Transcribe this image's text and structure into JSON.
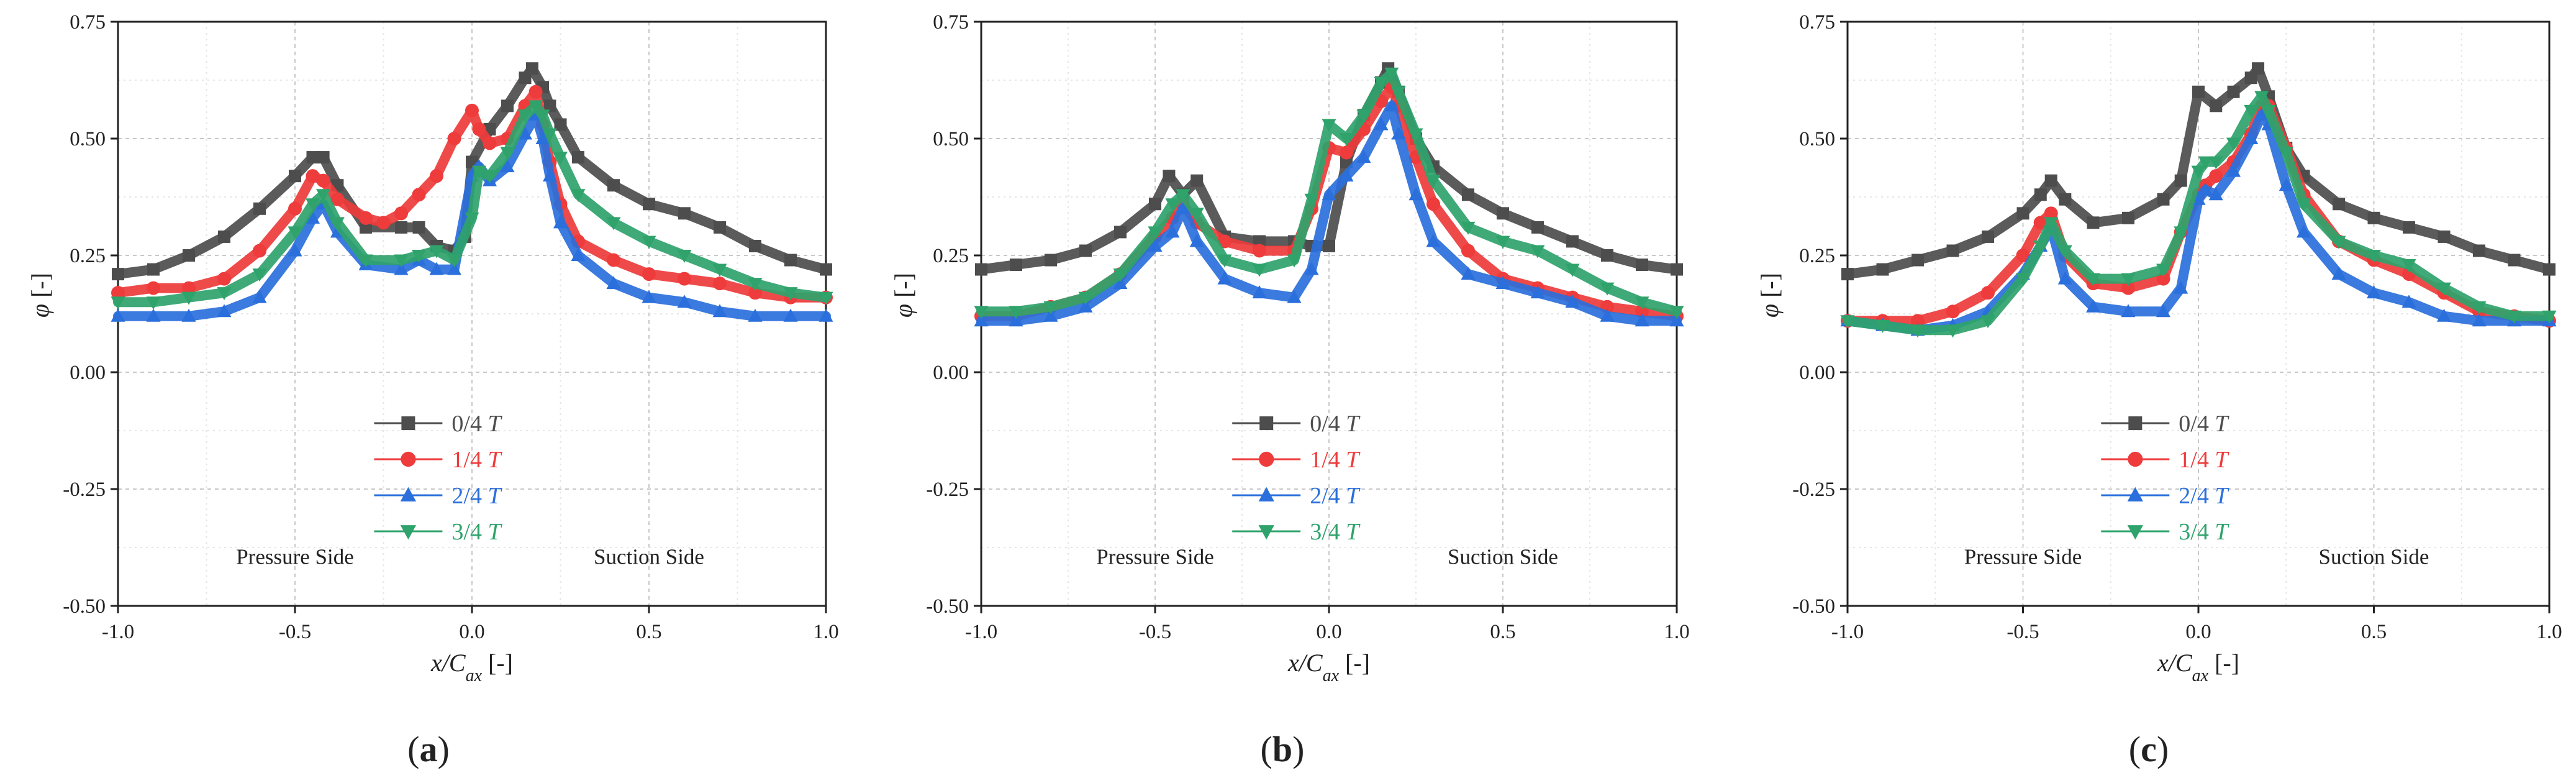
{
  "chart_data": [
    {
      "type": "scatter",
      "panel_label": "a",
      "xlabel": "x/Cax [-]",
      "ylabel": "φ [-]",
      "xlim": [
        -1.0,
        1.0
      ],
      "ylim": [
        -0.5,
        0.75
      ],
      "xticks": [
        "-1.0",
        "-0.5",
        "0.0",
        "0.5",
        "1.0"
      ],
      "yticks": [
        "-0.50",
        "-0.25",
        "0.00",
        "0.25",
        "0.50",
        "0.75"
      ],
      "grid": true,
      "legend_position": "lower-center",
      "annotations": [
        "Pressure Side",
        "Suction Side"
      ],
      "series": [
        {
          "name": "0/4 T",
          "color": "#4d4d4d",
          "marker": "square",
          "x": [
            -1.0,
            -0.9,
            -0.8,
            -0.7,
            -0.6,
            -0.5,
            -0.45,
            -0.42,
            -0.38,
            -0.3,
            -0.2,
            -0.15,
            -0.1,
            -0.05,
            -0.02,
            0.0,
            0.05,
            0.1,
            0.15,
            0.17,
            0.2,
            0.22,
            0.25,
            0.3,
            0.4,
            0.5,
            0.6,
            0.7,
            0.8,
            0.9,
            1.0
          ],
          "y": [
            0.21,
            0.22,
            0.25,
            0.29,
            0.35,
            0.42,
            0.46,
            0.46,
            0.4,
            0.31,
            0.31,
            0.31,
            0.27,
            0.26,
            0.29,
            0.45,
            0.52,
            0.57,
            0.63,
            0.65,
            0.61,
            0.57,
            0.53,
            0.46,
            0.4,
            0.36,
            0.34,
            0.31,
            0.27,
            0.24,
            0.22
          ]
        },
        {
          "name": "1/4 T",
          "color": "#ee3b3b",
          "marker": "circle",
          "x": [
            -1.0,
            -0.9,
            -0.8,
            -0.7,
            -0.6,
            -0.5,
            -0.45,
            -0.42,
            -0.38,
            -0.3,
            -0.25,
            -0.2,
            -0.15,
            -0.1,
            -0.05,
            0.0,
            0.02,
            0.05,
            0.1,
            0.15,
            0.18,
            0.2,
            0.22,
            0.25,
            0.3,
            0.4,
            0.5,
            0.6,
            0.7,
            0.8,
            0.9,
            1.0
          ],
          "y": [
            0.17,
            0.18,
            0.18,
            0.2,
            0.26,
            0.35,
            0.42,
            0.41,
            0.37,
            0.33,
            0.32,
            0.34,
            0.38,
            0.42,
            0.5,
            0.56,
            0.52,
            0.49,
            0.5,
            0.57,
            0.6,
            0.53,
            0.45,
            0.36,
            0.28,
            0.24,
            0.21,
            0.2,
            0.19,
            0.17,
            0.16,
            0.16
          ]
        },
        {
          "name": "2/4 T",
          "color": "#2a6fdb",
          "marker": "triangle-up",
          "x": [
            -1.0,
            -0.9,
            -0.8,
            -0.7,
            -0.6,
            -0.5,
            -0.45,
            -0.42,
            -0.38,
            -0.3,
            -0.2,
            -0.15,
            -0.1,
            -0.05,
            0.0,
            0.02,
            0.05,
            0.1,
            0.15,
            0.18,
            0.2,
            0.22,
            0.25,
            0.3,
            0.4,
            0.5,
            0.6,
            0.7,
            0.8,
            0.9,
            1.0
          ],
          "y": [
            0.12,
            0.12,
            0.12,
            0.13,
            0.16,
            0.26,
            0.33,
            0.36,
            0.3,
            0.23,
            0.22,
            0.24,
            0.22,
            0.22,
            0.42,
            0.44,
            0.41,
            0.44,
            0.51,
            0.55,
            0.5,
            0.42,
            0.32,
            0.25,
            0.19,
            0.16,
            0.15,
            0.13,
            0.12,
            0.12,
            0.12
          ]
        },
        {
          "name": "3/4 T",
          "color": "#2fa36b",
          "marker": "triangle-down",
          "x": [
            -1.0,
            -0.9,
            -0.8,
            -0.7,
            -0.6,
            -0.5,
            -0.45,
            -0.42,
            -0.38,
            -0.3,
            -0.2,
            -0.15,
            -0.1,
            -0.05,
            0.0,
            0.02,
            0.05,
            0.1,
            0.15,
            0.18,
            0.2,
            0.22,
            0.25,
            0.3,
            0.4,
            0.5,
            0.6,
            0.7,
            0.8,
            0.9,
            1.0
          ],
          "y": [
            0.15,
            0.15,
            0.16,
            0.17,
            0.21,
            0.3,
            0.36,
            0.38,
            0.32,
            0.24,
            0.24,
            0.25,
            0.26,
            0.24,
            0.33,
            0.43,
            0.42,
            0.47,
            0.55,
            0.57,
            0.55,
            0.51,
            0.46,
            0.38,
            0.32,
            0.28,
            0.25,
            0.22,
            0.19,
            0.17,
            0.16
          ]
        }
      ]
    },
    {
      "type": "scatter",
      "panel_label": "b",
      "xlabel": "x/Cax [-]",
      "ylabel": "φ [-]",
      "xlim": [
        -1.0,
        1.0
      ],
      "ylim": [
        -0.5,
        0.75
      ],
      "xticks": [
        "-1.0",
        "-0.5",
        "0.0",
        "0.5",
        "1.0"
      ],
      "yticks": [
        "-0.50",
        "-0.25",
        "0.00",
        "0.25",
        "0.50",
        "0.75"
      ],
      "grid": true,
      "legend_position": "lower-center",
      "annotations": [
        "Pressure Side",
        "Suction Side"
      ],
      "series": [
        {
          "name": "0/4 T",
          "color": "#4d4d4d",
          "marker": "square",
          "x": [
            -1.0,
            -0.9,
            -0.8,
            -0.7,
            -0.6,
            -0.5,
            -0.46,
            -0.42,
            -0.38,
            -0.3,
            -0.2,
            -0.1,
            -0.05,
            0.0,
            0.05,
            0.1,
            0.15,
            0.17,
            0.2,
            0.25,
            0.3,
            0.4,
            0.5,
            0.6,
            0.7,
            0.8,
            0.9,
            1.0
          ],
          "y": [
            0.22,
            0.23,
            0.24,
            0.26,
            0.3,
            0.36,
            0.42,
            0.38,
            0.41,
            0.29,
            0.28,
            0.28,
            0.27,
            0.27,
            0.45,
            0.55,
            0.62,
            0.65,
            0.6,
            0.5,
            0.44,
            0.38,
            0.34,
            0.31,
            0.28,
            0.25,
            0.23,
            0.22
          ]
        },
        {
          "name": "1/4 T",
          "color": "#ee3b3b",
          "marker": "circle",
          "x": [
            -1.0,
            -0.9,
            -0.8,
            -0.7,
            -0.6,
            -0.5,
            -0.45,
            -0.42,
            -0.38,
            -0.3,
            -0.2,
            -0.1,
            -0.05,
            0.0,
            0.05,
            0.1,
            0.15,
            0.18,
            0.2,
            0.25,
            0.3,
            0.4,
            0.5,
            0.6,
            0.7,
            0.8,
            0.9,
            1.0
          ],
          "y": [
            0.12,
            0.12,
            0.14,
            0.16,
            0.21,
            0.29,
            0.33,
            0.36,
            0.32,
            0.28,
            0.26,
            0.26,
            0.35,
            0.48,
            0.47,
            0.52,
            0.58,
            0.61,
            0.57,
            0.46,
            0.36,
            0.26,
            0.2,
            0.18,
            0.16,
            0.14,
            0.13,
            0.12
          ]
        },
        {
          "name": "2/4 T",
          "color": "#2a6fdb",
          "marker": "triangle-up",
          "x": [
            -1.0,
            -0.9,
            -0.8,
            -0.7,
            -0.6,
            -0.5,
            -0.45,
            -0.42,
            -0.38,
            -0.3,
            -0.2,
            -0.1,
            -0.05,
            0.0,
            0.05,
            0.1,
            0.15,
            0.18,
            0.2,
            0.25,
            0.3,
            0.4,
            0.5,
            0.6,
            0.7,
            0.8,
            0.9,
            1.0
          ],
          "y": [
            0.11,
            0.11,
            0.12,
            0.14,
            0.19,
            0.27,
            0.3,
            0.35,
            0.28,
            0.2,
            0.17,
            0.16,
            0.22,
            0.38,
            0.42,
            0.46,
            0.53,
            0.57,
            0.51,
            0.38,
            0.28,
            0.21,
            0.19,
            0.17,
            0.15,
            0.12,
            0.11,
            0.11
          ]
        },
        {
          "name": "3/4 T",
          "color": "#2fa36b",
          "marker": "triangle-down",
          "x": [
            -1.0,
            -0.9,
            -0.8,
            -0.7,
            -0.6,
            -0.5,
            -0.45,
            -0.42,
            -0.38,
            -0.3,
            -0.2,
            -0.1,
            -0.05,
            0.0,
            0.05,
            0.1,
            0.15,
            0.18,
            0.2,
            0.25,
            0.3,
            0.4,
            0.5,
            0.6,
            0.7,
            0.8,
            0.9,
            1.0
          ],
          "y": [
            0.13,
            0.13,
            0.14,
            0.16,
            0.21,
            0.3,
            0.36,
            0.38,
            0.34,
            0.24,
            0.22,
            0.24,
            0.37,
            0.53,
            0.5,
            0.55,
            0.62,
            0.64,
            0.6,
            0.51,
            0.41,
            0.31,
            0.28,
            0.26,
            0.22,
            0.18,
            0.15,
            0.13
          ]
        }
      ]
    },
    {
      "type": "scatter",
      "panel_label": "c",
      "xlabel": "x/Cax [-]",
      "ylabel": "φ [-]",
      "xlim": [
        -1.0,
        1.0
      ],
      "ylim": [
        -0.5,
        0.75
      ],
      "xticks": [
        "-1.0",
        "-0.5",
        "0.0",
        "0.5",
        "1.0"
      ],
      "yticks": [
        "-0.50",
        "-0.25",
        "0.00",
        "0.25",
        "0.50",
        "0.75"
      ],
      "grid": true,
      "legend_position": "lower-center",
      "annotations": [
        "Pressure Side",
        "Suction Side"
      ],
      "series": [
        {
          "name": "0/4 T",
          "color": "#4d4d4d",
          "marker": "square",
          "x": [
            -1.0,
            -0.9,
            -0.8,
            -0.7,
            -0.6,
            -0.5,
            -0.45,
            -0.42,
            -0.38,
            -0.3,
            -0.2,
            -0.1,
            -0.05,
            0.0,
            0.05,
            0.1,
            0.15,
            0.17,
            0.2,
            0.25,
            0.3,
            0.4,
            0.5,
            0.6,
            0.7,
            0.8,
            0.9,
            1.0
          ],
          "y": [
            0.21,
            0.22,
            0.24,
            0.26,
            0.29,
            0.34,
            0.38,
            0.41,
            0.37,
            0.32,
            0.33,
            0.37,
            0.41,
            0.6,
            0.57,
            0.6,
            0.63,
            0.65,
            0.59,
            0.48,
            0.42,
            0.36,
            0.33,
            0.31,
            0.29,
            0.26,
            0.24,
            0.22
          ]
        },
        {
          "name": "1/4 T",
          "color": "#ee3b3b",
          "marker": "circle",
          "x": [
            -1.0,
            -0.9,
            -0.8,
            -0.7,
            -0.6,
            -0.5,
            -0.45,
            -0.42,
            -0.38,
            -0.3,
            -0.2,
            -0.1,
            -0.05,
            0.0,
            0.02,
            0.05,
            0.1,
            0.15,
            0.18,
            0.2,
            0.25,
            0.3,
            0.4,
            0.5,
            0.6,
            0.7,
            0.8,
            0.9,
            1.0
          ],
          "y": [
            0.11,
            0.11,
            0.11,
            0.13,
            0.17,
            0.25,
            0.32,
            0.34,
            0.25,
            0.19,
            0.18,
            0.2,
            0.3,
            0.38,
            0.4,
            0.42,
            0.45,
            0.51,
            0.57,
            0.57,
            0.48,
            0.38,
            0.28,
            0.24,
            0.21,
            0.17,
            0.13,
            0.12,
            0.11
          ]
        },
        {
          "name": "2/4 T",
          "color": "#2a6fdb",
          "marker": "triangle-up",
          "x": [
            -1.0,
            -0.9,
            -0.8,
            -0.7,
            -0.6,
            -0.5,
            -0.45,
            -0.42,
            -0.38,
            -0.3,
            -0.2,
            -0.1,
            -0.05,
            0.0,
            0.02,
            0.05,
            0.1,
            0.15,
            0.18,
            0.2,
            0.25,
            0.3,
            0.4,
            0.5,
            0.6,
            0.7,
            0.8,
            0.9,
            1.0
          ],
          "y": [
            0.11,
            0.1,
            0.09,
            0.1,
            0.13,
            0.21,
            0.27,
            0.31,
            0.2,
            0.14,
            0.13,
            0.13,
            0.18,
            0.37,
            0.39,
            0.38,
            0.43,
            0.5,
            0.55,
            0.53,
            0.4,
            0.3,
            0.21,
            0.17,
            0.15,
            0.12,
            0.11,
            0.11,
            0.11
          ]
        },
        {
          "name": "3/4 T",
          "color": "#2fa36b",
          "marker": "triangle-down",
          "x": [
            -1.0,
            -0.9,
            -0.8,
            -0.7,
            -0.6,
            -0.5,
            -0.45,
            -0.42,
            -0.38,
            -0.3,
            -0.2,
            -0.1,
            -0.05,
            0.0,
            0.02,
            0.05,
            0.1,
            0.15,
            0.18,
            0.2,
            0.25,
            0.3,
            0.4,
            0.5,
            0.6,
            0.7,
            0.8,
            0.9,
            1.0
          ],
          "y": [
            0.11,
            0.1,
            0.09,
            0.09,
            0.11,
            0.2,
            0.27,
            0.32,
            0.26,
            0.2,
            0.2,
            0.22,
            0.3,
            0.43,
            0.45,
            0.45,
            0.49,
            0.56,
            0.59,
            0.56,
            0.47,
            0.36,
            0.28,
            0.25,
            0.23,
            0.18,
            0.14,
            0.12,
            0.12
          ]
        }
      ]
    }
  ]
}
